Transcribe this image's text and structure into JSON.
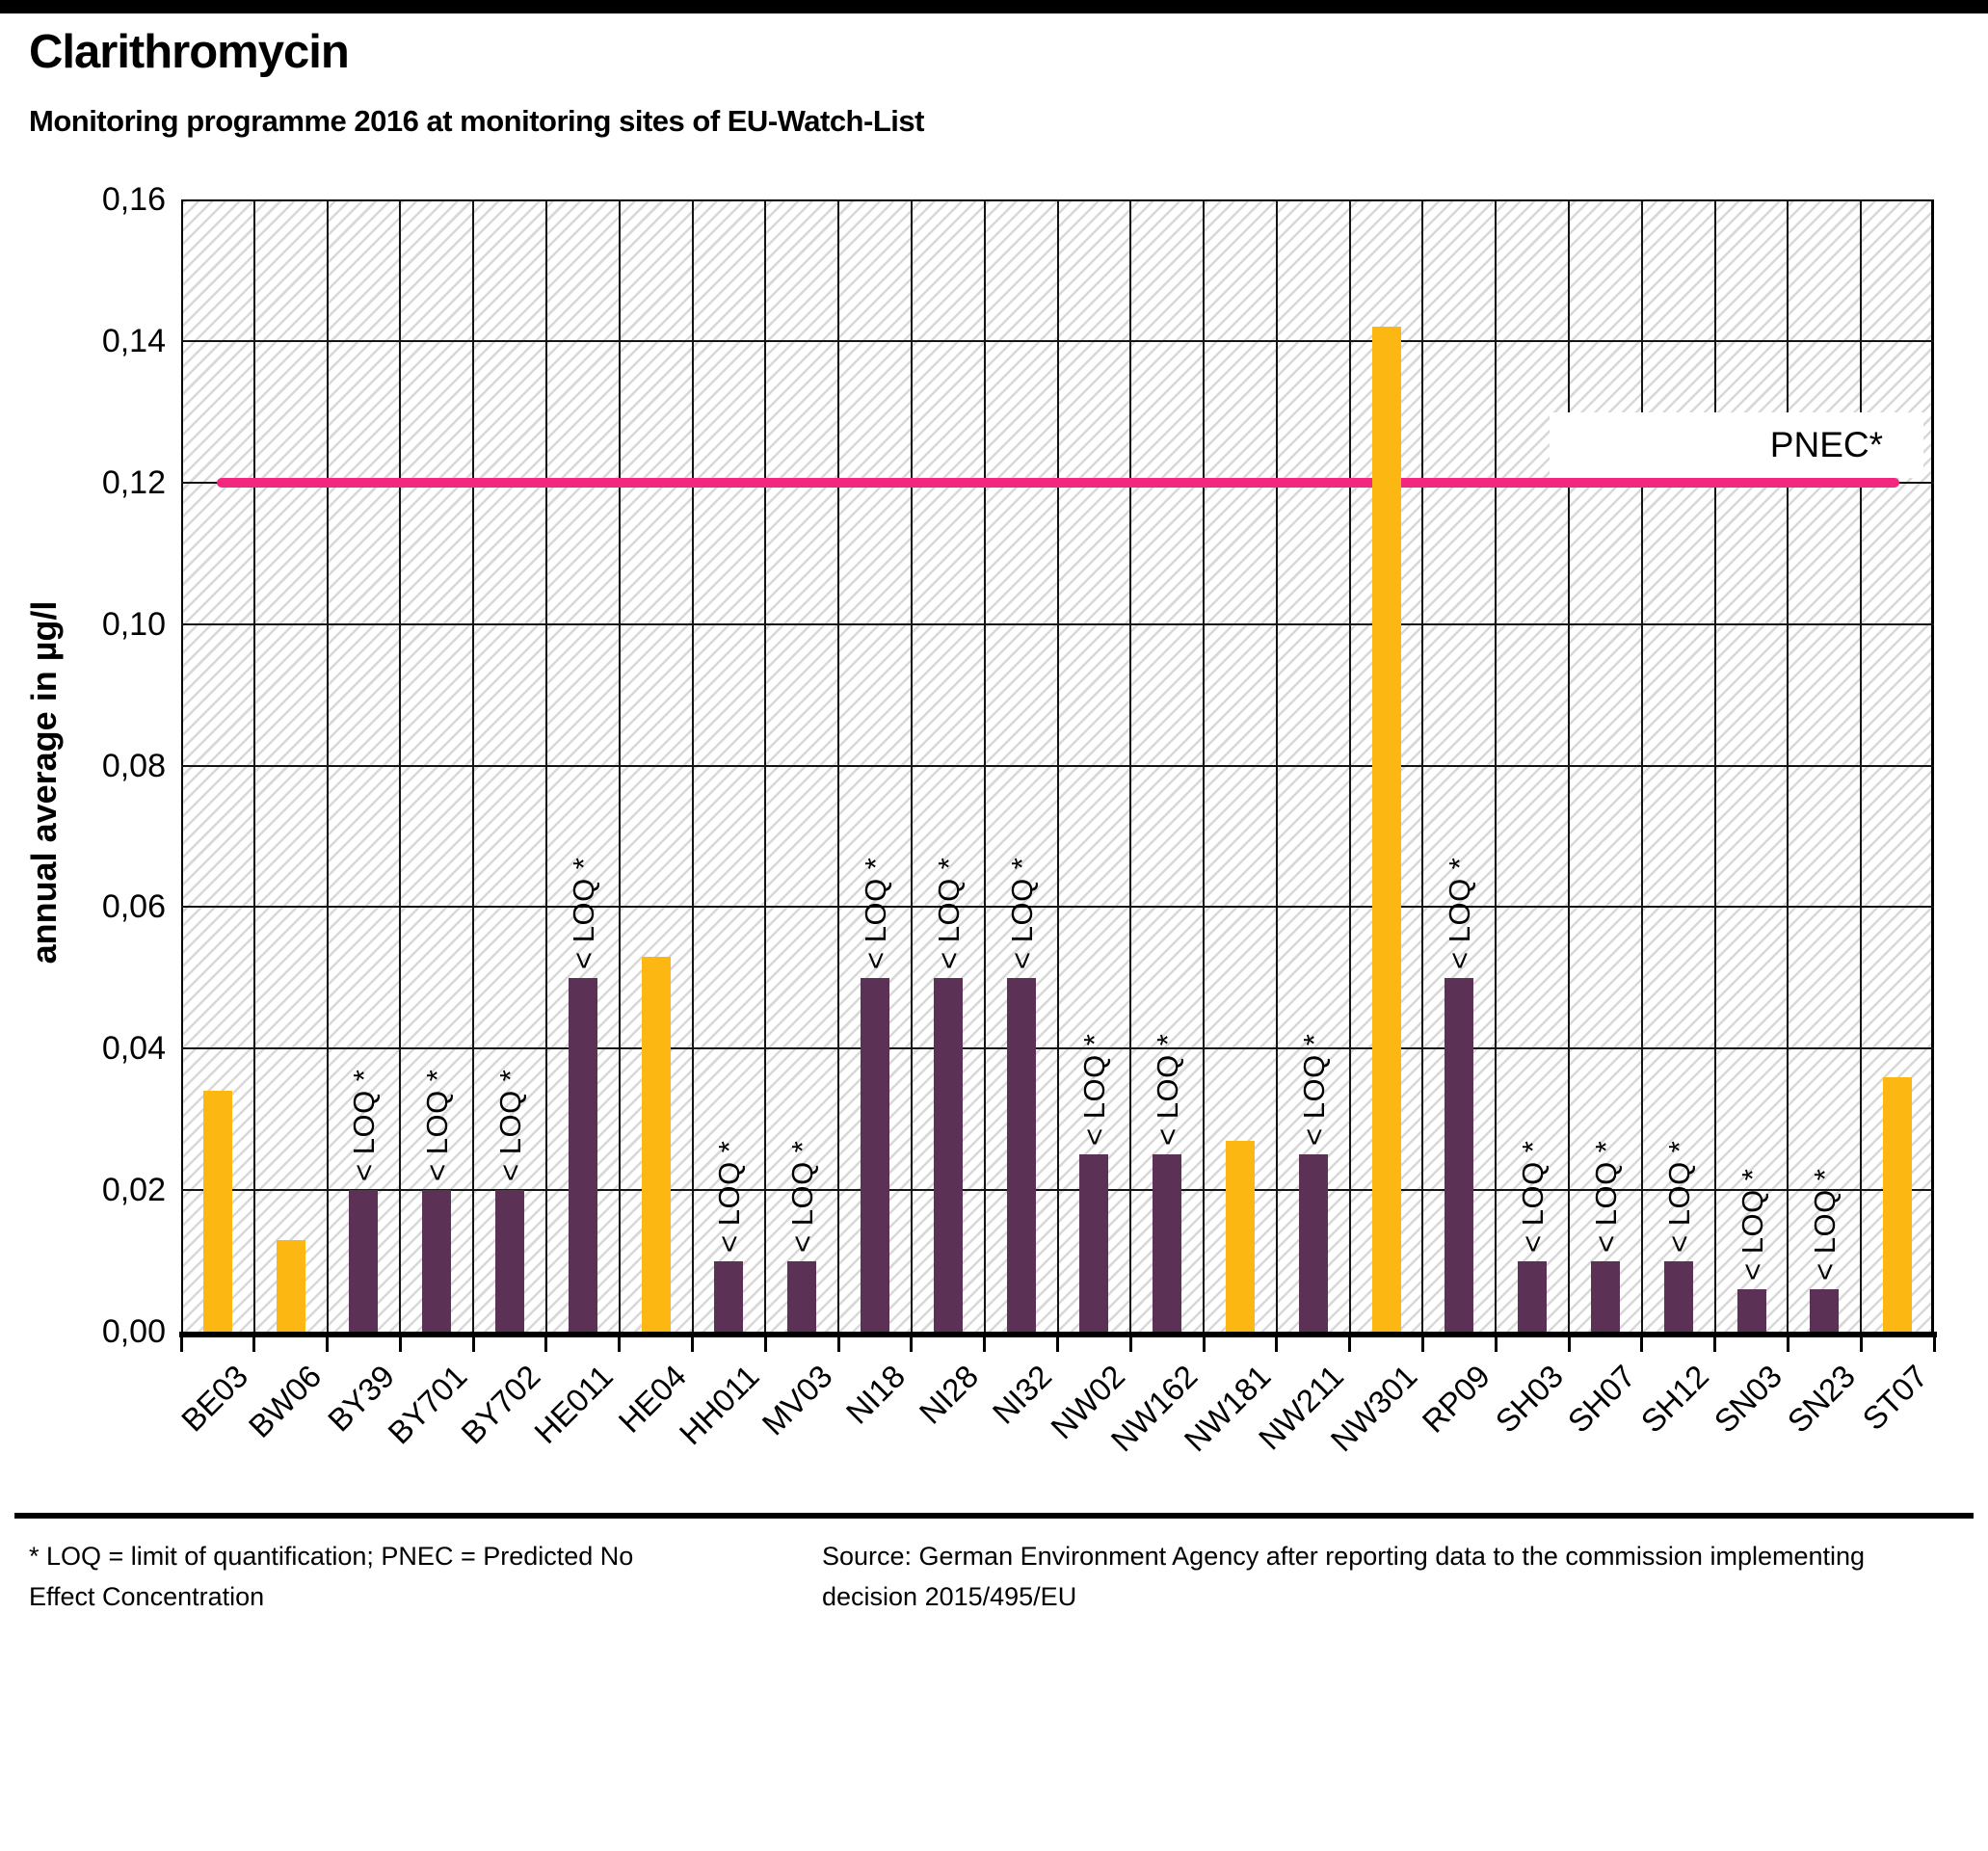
{
  "header": {
    "title": "Clarithromycin",
    "subtitle": "Monitoring programme 2016 at monitoring sites of EU-Watch-List"
  },
  "chart_data": {
    "type": "bar",
    "title": "Clarithromycin",
    "subtitle": "Monitoring programme 2016 at monitoring sites of EU-Watch-List",
    "ylabel": "annual average in µg/l",
    "xlabel": "",
    "ylim": [
      0,
      0.16
    ],
    "ytick_step": 0.02,
    "ytick_labels": [
      "0,00",
      "0,02",
      "0,04",
      "0,06",
      "0,08",
      "0,10",
      "0,12",
      "0,14",
      "0,16"
    ],
    "grid": "both",
    "background_hatched": true,
    "categories": [
      "BE03",
      "BW06",
      "BY39",
      "BY701",
      "BY702",
      "HE011",
      "HE04",
      "HH011",
      "MV03",
      "NI18",
      "NI28",
      "NI32",
      "NW02",
      "NW162",
      "NW181",
      "NW211",
      "NW301",
      "RP09",
      "SH03",
      "SH07",
      "SH12",
      "SN03",
      "SN23",
      "ST07"
    ],
    "values": [
      0.034,
      0.013,
      0.02,
      0.02,
      0.02,
      0.05,
      0.053,
      0.01,
      0.01,
      0.05,
      0.05,
      0.05,
      0.025,
      0.025,
      0.027,
      0.025,
      0.142,
      0.05,
      0.01,
      0.01,
      0.01,
      0.006,
      0.006,
      0.036
    ],
    "below_loq": [
      false,
      false,
      true,
      true,
      true,
      true,
      false,
      true,
      true,
      true,
      true,
      true,
      true,
      true,
      false,
      true,
      false,
      true,
      true,
      true,
      true,
      true,
      true,
      false
    ],
    "below_loq_label": "< LOQ *",
    "reference_line": {
      "value": 0.12,
      "label": "PNEC*"
    },
    "colors": {
      "measured_bar": "#FCB713",
      "below_loq_bar": "#5B3156",
      "pnec_line": "#F4277E",
      "gridline": "#141414"
    },
    "legend_position": "none"
  },
  "footer": {
    "footnote": "* LOQ = limit of quantification; PNEC = Predicted No Effect Concentration",
    "source": "Source: German Environment Agency after reporting data to the commission implementing decision 2015/495/EU"
  }
}
